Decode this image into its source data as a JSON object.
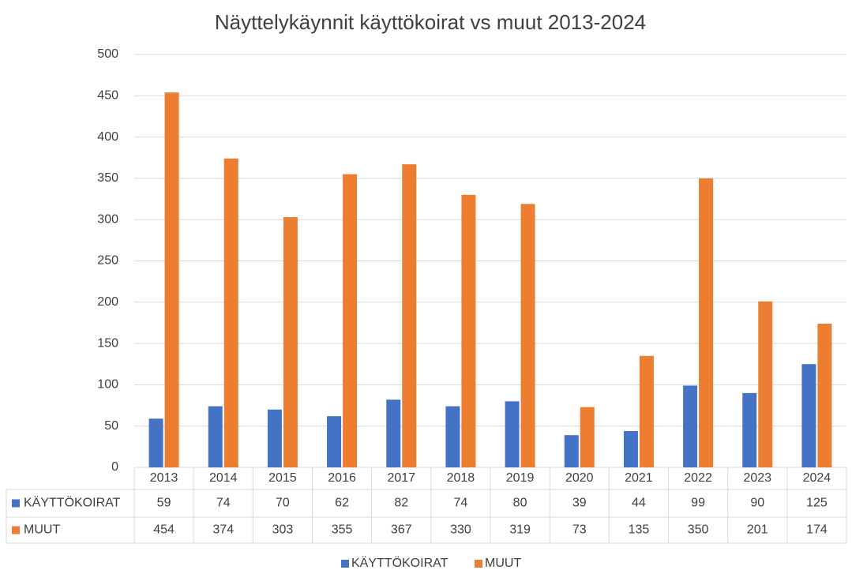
{
  "chart_data": {
    "type": "bar",
    "title": "Näyttelykäynnit käyttökoirat vs muut 2013-2024",
    "categories": [
      "2013",
      "2014",
      "2015",
      "2016",
      "2017",
      "2018",
      "2019",
      "2020",
      "2021",
      "2022",
      "2023",
      "2024"
    ],
    "series": [
      {
        "name": "KÄYTTÖKOIRAT",
        "color": "#4472c4",
        "values": [
          59,
          74,
          70,
          62,
          82,
          74,
          80,
          39,
          44,
          99,
          90,
          125
        ]
      },
      {
        "name": "MUUT",
        "color": "#ed7d31",
        "values": [
          454,
          374,
          303,
          355,
          367,
          330,
          319,
          73,
          135,
          350,
          201,
          174
        ]
      }
    ],
    "ylim": [
      0,
      500
    ],
    "yticks": [
      0,
      50,
      100,
      150,
      200,
      250,
      300,
      350,
      400,
      450,
      500
    ],
    "grid": true
  }
}
